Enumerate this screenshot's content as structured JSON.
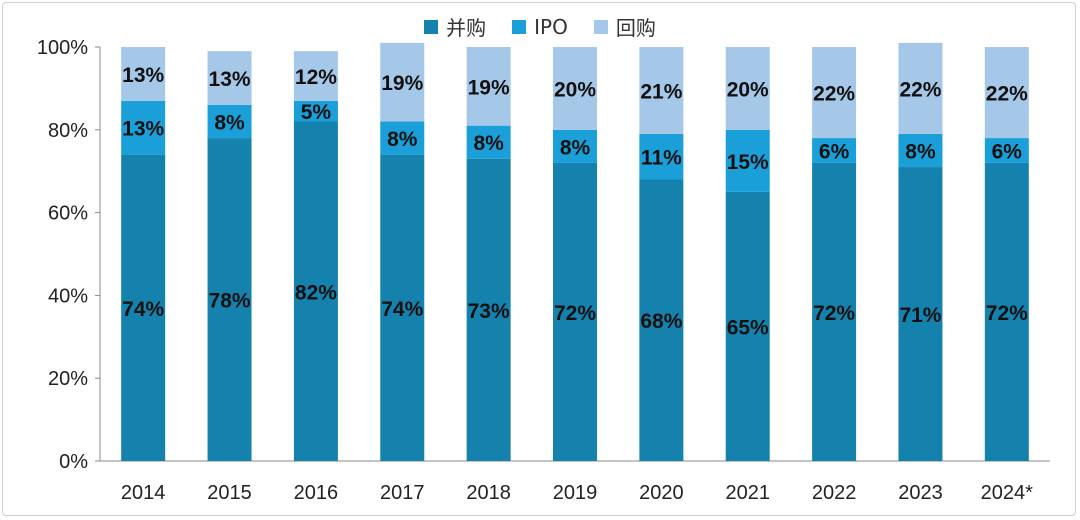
{
  "chart_data": {
    "type": "bar",
    "stacked": true,
    "categories": [
      "2014",
      "2015",
      "2016",
      "2017",
      "2018",
      "2019",
      "2020",
      "2021",
      "2022",
      "2023",
      "2024*"
    ],
    "series": [
      {
        "name": "并购",
        "color": "#1582ae",
        "values": [
          74,
          78,
          82,
          74,
          73,
          72,
          68,
          65,
          72,
          71,
          72
        ]
      },
      {
        "name": "IPO",
        "color": "#1a9fd9",
        "values": [
          13,
          8,
          5,
          8,
          8,
          8,
          11,
          15,
          6,
          8,
          6
        ]
      },
      {
        "name": "回购",
        "color": "#a6c8e8",
        "values": [
          13,
          13,
          12,
          19,
          19,
          20,
          21,
          20,
          22,
          22,
          22
        ]
      }
    ],
    "data_labels": [
      [
        "74%",
        "78%",
        "82%",
        "74%",
        "73%",
        "72%",
        "68%",
        "65%",
        "72%",
        "71%",
        "72%"
      ],
      [
        "13%",
        "8%",
        "5%",
        "8%",
        "8%",
        "8%",
        "11%",
        "15%",
        "6%",
        "8%",
        "6%"
      ],
      [
        "13%",
        "13%",
        "12%",
        "19%",
        "19%",
        "20%",
        "21%",
        "20%",
        "22%",
        "22%",
        "22%"
      ]
    ],
    "y_ticks": [
      "0%",
      "20%",
      "40%",
      "60%",
      "80%",
      "100%"
    ],
    "ylim": [
      0,
      100
    ],
    "legend_position": "top-center",
    "grid": false
  }
}
